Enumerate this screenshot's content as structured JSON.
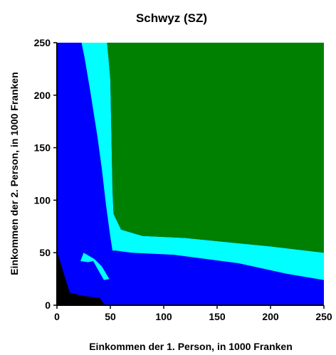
{
  "chart_data": {
    "type": "heatmap",
    "title": "Schwyz (SZ)",
    "xlabel": "Einkommen der 1. Person, in 1000 Franken",
    "ylabel": "Einkommen der 2. Person, in 1000 Franken",
    "xlim": [
      0,
      250
    ],
    "ylim": [
      0,
      250
    ],
    "xticks": [
      0,
      50,
      100,
      150,
      200,
      250
    ],
    "yticks": [
      0,
      50,
      100,
      150,
      200,
      250
    ],
    "grid": false,
    "legend": "none",
    "regions": [
      {
        "color": "#0000ff",
        "polygon": [
          [
            0,
            0
          ],
          [
            250,
            0
          ],
          [
            250,
            250
          ],
          [
            0,
            250
          ]
        ]
      },
      {
        "color": "#000000",
        "polygon": [
          [
            0,
            0
          ],
          [
            45,
            0
          ],
          [
            40,
            7
          ],
          [
            24,
            9
          ],
          [
            12,
            12
          ],
          [
            8,
            25
          ],
          [
            4,
            38
          ],
          [
            0,
            52
          ]
        ]
      },
      {
        "color": "#00ffff",
        "polygon": [
          [
            23,
            250
          ],
          [
            47,
            250
          ],
          [
            50,
            215
          ],
          [
            52,
            110
          ],
          [
            53,
            87
          ],
          [
            60,
            72
          ],
          [
            80,
            66
          ],
          [
            120,
            64
          ],
          [
            160,
            60
          ],
          [
            200,
            56
          ],
          [
            250,
            50
          ],
          [
            250,
            24
          ],
          [
            215,
            30
          ],
          [
            170,
            40
          ],
          [
            110,
            48
          ],
          [
            70,
            50
          ],
          [
            55,
            52
          ],
          [
            52,
            52
          ],
          [
            50,
            65
          ],
          [
            46,
            95
          ],
          [
            42,
            130
          ],
          [
            38,
            160
          ],
          [
            31,
            205
          ],
          [
            26,
            235
          ]
        ]
      },
      {
        "color": "#00ffff",
        "polygon": [
          [
            22,
            42
          ],
          [
            25,
            50
          ],
          [
            35,
            44
          ],
          [
            42,
            37
          ],
          [
            49,
            25
          ],
          [
            44,
            24
          ],
          [
            40,
            31
          ],
          [
            34,
            42
          ],
          [
            29,
            41
          ]
        ]
      },
      {
        "color": "#008000",
        "polygon": [
          [
            47,
            250
          ],
          [
            250,
            250
          ],
          [
            250,
            50
          ],
          [
            200,
            56
          ],
          [
            160,
            60
          ],
          [
            120,
            64
          ],
          [
            80,
            66
          ],
          [
            60,
            72
          ],
          [
            53,
            87
          ],
          [
            52,
            110
          ],
          [
            50,
            215
          ]
        ]
      }
    ]
  }
}
